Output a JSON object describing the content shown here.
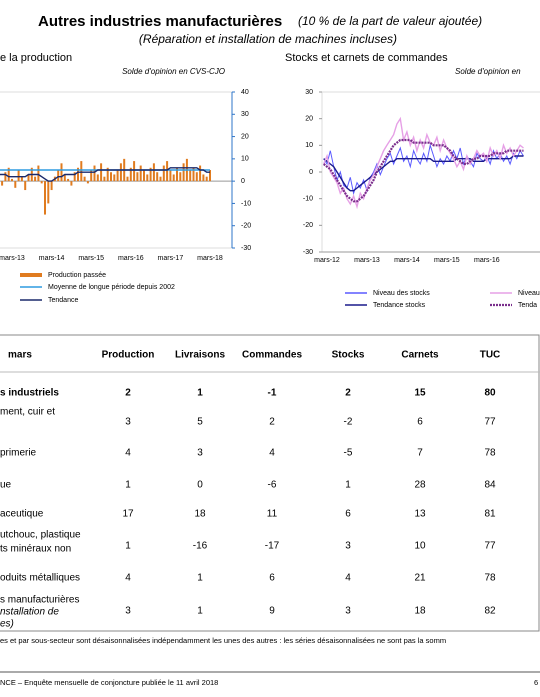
{
  "header": {
    "title": "Autres industries manufacturières",
    "title_note": "(10 % de la part de valeur ajoutée)",
    "subtitle": "(Réparation et installation de machines incluses)"
  },
  "charts": [
    {
      "type": "bar-line",
      "title": "e la production",
      "unit_note": "Solde d'opinion en CVS-CJO",
      "categories": [
        null,
        null,
        null,
        null,
        "mars-13",
        null,
        null,
        null,
        null,
        null,
        null,
        null,
        null,
        null,
        null,
        null,
        "mars-14",
        null,
        null,
        null,
        null,
        null,
        null,
        null,
        null,
        null,
        null,
        null,
        "mars-15",
        null,
        null,
        null,
        null,
        null,
        null,
        null,
        null,
        null,
        null,
        null,
        "mars-16",
        null,
        null,
        null,
        null,
        null,
        null,
        null,
        null,
        null,
        null,
        null,
        "mars-17",
        null,
        null,
        null,
        null,
        null,
        null,
        null,
        null,
        null,
        null,
        null,
        "mars-18"
      ],
      "ylim": [
        -30,
        40
      ],
      "yticks": [
        -30,
        -20,
        -10,
        0,
        10,
        20,
        30,
        40
      ],
      "series": [
        {
          "name": "Production passée",
          "kind": "bar",
          "color": "#e07b1f",
          "values": [
            3,
            -2,
            4,
            6,
            1,
            -3,
            5,
            2,
            -4,
            3,
            6,
            2,
            7,
            -1,
            -15,
            -10,
            -4,
            2,
            5,
            8,
            3,
            1,
            -2,
            4,
            6,
            9,
            2,
            -1,
            5,
            7,
            3,
            8,
            2,
            6,
            4,
            3,
            5,
            8,
            10,
            2,
            6,
            9,
            4,
            7,
            5,
            3,
            6,
            8,
            4,
            2,
            7,
            9,
            5,
            3,
            6,
            4,
            8,
            10,
            5,
            6,
            4,
            7,
            3,
            2,
            5
          ]
        },
        {
          "name": "Moyenne de longue période depuis 2002",
          "kind": "line",
          "color": "#2e9be0",
          "values": [
            5,
            5,
            5,
            5,
            5,
            5,
            5,
            5,
            5,
            5,
            5,
            5,
            5,
            5,
            5,
            5,
            5,
            5,
            5,
            5,
            5,
            5,
            5,
            5,
            5,
            5,
            5,
            5,
            5,
            5,
            5,
            5,
            5,
            5,
            5,
            5,
            5,
            5,
            5,
            5,
            5,
            5,
            5,
            5,
            5,
            5,
            5,
            5,
            5,
            5,
            5,
            5,
            5,
            5,
            5,
            5,
            5,
            5,
            5,
            5,
            5,
            5,
            5,
            5,
            5
          ]
        },
        {
          "name": "Tendance",
          "kind": "line",
          "color": "#1a2a6c",
          "values": [
            3,
            3,
            3,
            2,
            2,
            2,
            2,
            2,
            2,
            3,
            3,
            3,
            3,
            2,
            1,
            0,
            0,
            1,
            2,
            2,
            3,
            3,
            3,
            3,
            4,
            4,
            4,
            4,
            4,
            4,
            5,
            5,
            5,
            5,
            5,
            5,
            5,
            5,
            5,
            5,
            5,
            5,
            5,
            5,
            5,
            5,
            5,
            5,
            5,
            5,
            5,
            5,
            6,
            6,
            6,
            6,
            6,
            6,
            6,
            6,
            6,
            5,
            5,
            4,
            4
          ]
        }
      ]
    },
    {
      "type": "line",
      "title": "Stocks et carnets de commandes",
      "unit_note": "Solde d'opinion en",
      "categories": [
        null,
        "mars-12",
        null,
        null,
        null,
        null,
        null,
        null,
        null,
        null,
        null,
        null,
        null,
        "mars-13",
        null,
        null,
        null,
        null,
        null,
        null,
        null,
        null,
        null,
        null,
        null,
        "mars-14",
        null,
        null,
        null,
        null,
        null,
        null,
        null,
        null,
        null,
        null,
        null,
        "mars-15",
        null,
        null,
        null,
        null,
        null,
        null,
        null,
        null,
        null,
        null,
        null,
        "mars-16",
        null,
        null,
        null,
        null,
        null,
        null,
        null,
        null,
        null,
        null,
        null
      ],
      "ylim": [
        -30,
        30
      ],
      "yticks": [
        -30,
        -20,
        -10,
        0,
        10,
        20,
        30
      ],
      "series": [
        {
          "name": "Niveau des stocks",
          "kind": "line",
          "color": "#5a5aff",
          "values": [
            5,
            3,
            8,
            2,
            -3,
            0,
            -5,
            -6,
            -2,
            -8,
            -4,
            -6,
            -3,
            -7,
            -2,
            0,
            3,
            -1,
            2,
            5,
            7,
            3,
            6,
            9,
            4,
            6,
            2,
            8,
            5,
            3,
            7,
            4,
            10,
            6,
            2,
            5,
            3,
            6,
            4,
            8,
            5,
            9,
            3,
            6,
            4,
            2,
            7,
            5,
            4,
            6,
            3,
            8,
            5,
            7,
            4,
            6,
            3,
            7,
            5,
            8,
            6
          ]
        },
        {
          "name": "Tendance stocks",
          "kind": "line",
          "color": "#1a1a8c",
          "values": [
            5,
            4,
            3,
            2,
            0,
            -2,
            -4,
            -6,
            -7,
            -7,
            -6,
            -5,
            -4,
            -3,
            -2,
            -1,
            0,
            1,
            2,
            3,
            4,
            4,
            5,
            5,
            5,
            5,
            5,
            5,
            5,
            5,
            5,
            5,
            5,
            4,
            4,
            4,
            4,
            4,
            4,
            4,
            5,
            5,
            5,
            5,
            5,
            4,
            4,
            4,
            4,
            5,
            5,
            5,
            5,
            5,
            5,
            5,
            5,
            6,
            6,
            6,
            6
          ]
        },
        {
          "name": "Niveau",
          "kind": "line",
          "color": "#e6a0e6",
          "values": [
            3,
            6,
            0,
            -2,
            -4,
            -8,
            -6,
            -10,
            -12,
            -9,
            -13,
            -8,
            -10,
            -6,
            -3,
            -1,
            2,
            5,
            8,
            10,
            12,
            14,
            18,
            20,
            12,
            15,
            10,
            13,
            8,
            12,
            9,
            14,
            11,
            10,
            13,
            8,
            12,
            9,
            7,
            5,
            2,
            4,
            1,
            6,
            3,
            5,
            8,
            6,
            7,
            4,
            9,
            6,
            8,
            5,
            10,
            7,
            9,
            6,
            8,
            10,
            9
          ]
        },
        {
          "name": "Tenda",
          "kind": "dotted",
          "color": "#7a2e8c",
          "values": [
            3,
            2,
            1,
            -1,
            -3,
            -5,
            -7,
            -9,
            -10,
            -11,
            -11,
            -10,
            -9,
            -7,
            -5,
            -3,
            0,
            2,
            4,
            6,
            8,
            10,
            11,
            12,
            12,
            12,
            12,
            11,
            11,
            11,
            11,
            11,
            11,
            10,
            10,
            10,
            10,
            9,
            8,
            6,
            5,
            4,
            3,
            3,
            4,
            5,
            5,
            6,
            6,
            6,
            6,
            7,
            7,
            7,
            7,
            8,
            8,
            8,
            8,
            8,
            8
          ]
        }
      ]
    }
  ],
  "table": {
    "columns": [
      "mars",
      "Production",
      "Livraisons",
      "Commandes",
      "Stocks",
      "Carnets",
      "TUC"
    ],
    "rows": [
      {
        "label": [
          "s industriels"
        ],
        "values": [
          2,
          1,
          -1,
          2,
          15,
          80
        ]
      },
      {
        "label": [
          "ment, cuir et"
        ],
        "values": [
          3,
          5,
          2,
          -2,
          6,
          77
        ]
      },
      {
        "label": [
          "primerie"
        ],
        "values": [
          4,
          3,
          4,
          -5,
          7,
          78
        ]
      },
      {
        "label": [
          "ue"
        ],
        "values": [
          1,
          0,
          -6,
          1,
          28,
          84
        ]
      },
      {
        "label": [
          "aceutique"
        ],
        "values": [
          17,
          18,
          11,
          6,
          13,
          81
        ]
      },
      {
        "label": [
          "utchouc, plastique",
          "ts minéraux non"
        ],
        "values": [
          1,
          -16,
          -17,
          3,
          10,
          77
        ]
      },
      {
        "label": [
          "oduits métalliques"
        ],
        "values": [
          4,
          1,
          6,
          4,
          21,
          78
        ]
      },
      {
        "label": [
          "s manufacturières",
          "nstallation de",
          "es)"
        ],
        "values": [
          3,
          1,
          9,
          3,
          18,
          82
        ]
      }
    ]
  },
  "footnote": "es et par sous-secteur sont désaisonnalisées indépendamment les unes des autres : les séries désaisonnalisées ne sont pas la somm",
  "footer": {
    "text": "NCE –  Enquête mensuelle de conjoncture publiée le 11 avril 2018",
    "page": "6"
  }
}
